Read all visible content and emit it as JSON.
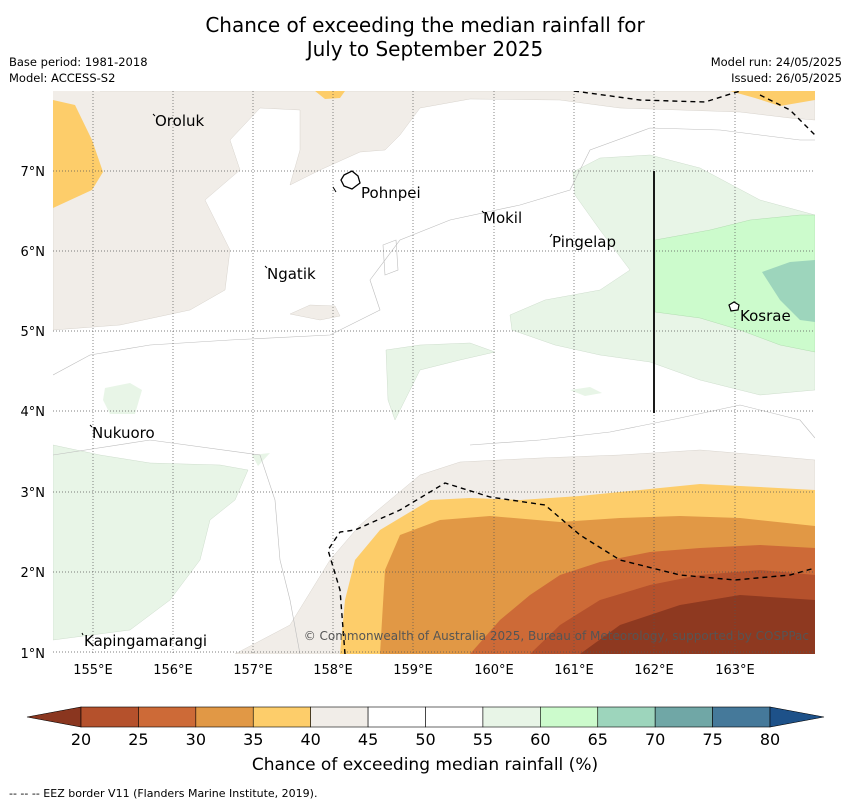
{
  "title_line1": "Chance of exceeding the median rainfall for",
  "title_line2": "July to September 2025",
  "meta": {
    "base_period": "Base period: 1981-2018",
    "model": "Model: ACCESS-S2",
    "model_run": "Model run: 24/05/2025",
    "issued": "Issued: 26/05/2025"
  },
  "axes": {
    "lon_labels": [
      "155°E",
      "156°E",
      "157°E",
      "158°E",
      "159°E",
      "160°E",
      "161°E",
      "162°E",
      "163°E"
    ],
    "lat_labels": [
      "7°N",
      "6°N",
      "5°N",
      "4°N",
      "3°N",
      "2°N",
      "1°N"
    ]
  },
  "places": [
    {
      "name": "Oroluk",
      "lon": 155.75,
      "lat": 7.7
    },
    {
      "name": "Pohnpei",
      "lon": 158.25,
      "lat": 6.9
    },
    {
      "name": "Mokil",
      "lon": 159.85,
      "lat": 6.5
    },
    {
      "name": "Pingelap",
      "lon": 160.7,
      "lat": 6.2
    },
    {
      "name": "Ngatik",
      "lon": 157.1,
      "lat": 5.8
    },
    {
      "name": "Kosrae",
      "lon": 162.95,
      "lat": 5.3
    },
    {
      "name": "Nukuoro",
      "lon": 154.95,
      "lat": 3.8
    },
    {
      "name": "Kapingamarangi",
      "lon": 154.95,
      "lat": 1.2
    }
  ],
  "copyright": "© Commonwealth of Australia 2025, Bureau of Meteorology, supported by COSPPac",
  "colorbar": {
    "title": "Chance of exceeding median rainfall (%)",
    "ticks": [
      "20",
      "25",
      "30",
      "35",
      "40",
      "45",
      "50",
      "55",
      "60",
      "65",
      "70",
      "75",
      "80"
    ],
    "colors": [
      "#b5512c",
      "#cd6a37",
      "#e19845",
      "#fdcd6a",
      "#f1ede8",
      "#ffffff",
      "#ffffff",
      "#e8f5e7",
      "#ccfbcc",
      "#9dd5bc",
      "#70a7a6",
      "#45799a"
    ],
    "under_color": "#8a361f",
    "over_color": "#1d5189"
  },
  "footnote": "--  --  -- EEZ border V11 (Flanders Marine Institute, 2019)."
}
